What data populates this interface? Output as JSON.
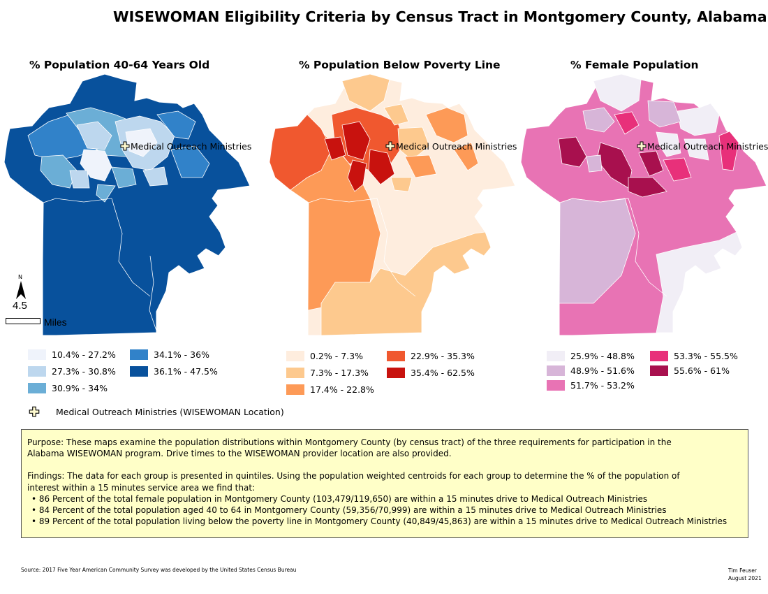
{
  "title": "WISEWOMAN Eligibility Criteria by Census Tract in Montgomery County, Alabama",
  "location_label": "Medical Outreach Ministries",
  "panels": [
    {
      "title": "% Population 40-64 Years Old",
      "legend": [
        {
          "label": "10.4% - 27.2%",
          "color": "#eff3fb"
        },
        {
          "label": "27.3% - 30.8%",
          "color": "#bdd7ee"
        },
        {
          "label": "30.9% - 34%",
          "color": "#6baed6"
        },
        {
          "label": "34.1% - 36%",
          "color": "#3182c9"
        },
        {
          "label": "36.1% - 47.5%",
          "color": "#08519c"
        }
      ]
    },
    {
      "title": "% Population Below Poverty Line",
      "legend": [
        {
          "label": "0.2% - 7.3%",
          "color": "#feedde"
        },
        {
          "label": "7.3% - 17.3%",
          "color": "#fdc98e"
        },
        {
          "label": "17.4% - 22.8%",
          "color": "#fd9a57"
        },
        {
          "label": "22.9% - 35.3%",
          "color": "#f0582f"
        },
        {
          "label": "35.4% - 62.5%",
          "color": "#c8120e"
        }
      ]
    },
    {
      "title": "% Female Population",
      "legend": [
        {
          "label": "25.9% - 48.8%",
          "color": "#f1eef6"
        },
        {
          "label": "48.9% - 51.6%",
          "color": "#d7b5d8"
        },
        {
          "label": "51.7% - 53.2%",
          "color": "#e873b4"
        },
        {
          "label": "53.3% - 55.5%",
          "color": "#e8307a"
        },
        {
          "label": "55.6% - 61%",
          "color": "#a8104e"
        }
      ]
    }
  ],
  "location_legend": "Medical Outreach Ministries (WISEWOMAN Location)",
  "scale": {
    "north": "N",
    "distance": "4.5",
    "unit": "Miles"
  },
  "purpose": [
    "Purpose: These maps examine the population distributions within Montgomery County (by census tract) of the three requirements for participation in the",
    "Alabama WISEWOMAN program.  Drive times to the WISEWOMAN provider location are also provided."
  ],
  "findings_intro": [
    "Findings: The data for each group is presented in quintiles. Using the population weighted centroids for each group to determine the % of the population of",
    "interest within a 15 minutes service area we find that:"
  ],
  "findings": [
    "86 Percent of the total female population in Montgomery County (103,479/119,650) are within a 15 minutes drive to Medical Outreach Ministries",
    "84 Percent of the total population aged 40 to 64 in Montgomery County (59,356/70,999) are within a 15 minutes drive to Medical Outreach Ministries",
    "89 Percent of the total population living below the poverty line in Montgomery County (40,849/45,863) are within a 15 minutes drive to Medical Outreach Ministries"
  ],
  "source": "Source: 2017 Five Year American Community Survey was developed by the United States Census Bureau",
  "author": "Tim Feuser",
  "date": "August 2021"
}
